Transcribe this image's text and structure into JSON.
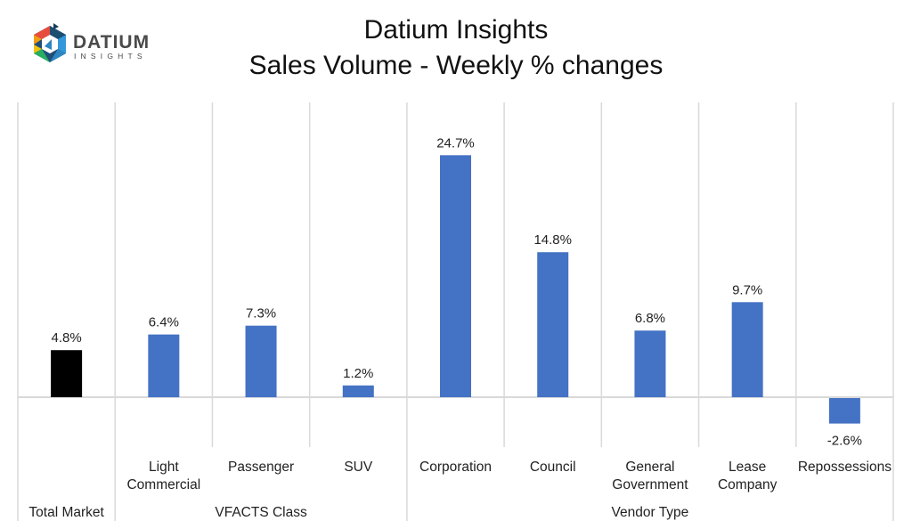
{
  "logo": {
    "text": "DATIUM",
    "subtext": "INSIGHTS"
  },
  "chart_data": {
    "type": "bar",
    "title": [
      "Datium Insights",
      "Sales Volume - Weekly % changes"
    ],
    "categories": [
      "Total Market",
      "Light Commercial",
      "Passenger",
      "SUV",
      "Corporation",
      "Council",
      "General Government",
      "Lease Company",
      "Repossessions"
    ],
    "category_label_lines": [
      [
        ""
      ],
      [
        "Light",
        "Commercial"
      ],
      [
        "Passenger"
      ],
      [
        "SUV"
      ],
      [
        "Corporation"
      ],
      [
        "Council"
      ],
      [
        "General",
        "Government"
      ],
      [
        "Lease",
        "Company"
      ],
      [
        "Repossessions"
      ]
    ],
    "groups": [
      {
        "label": "Total Market",
        "start": 0,
        "count": 1
      },
      {
        "label": "VFACTS Class",
        "start": 1,
        "count": 3
      },
      {
        "label": "Vendor Type",
        "start": 4,
        "count": 5
      }
    ],
    "values": [
      4.8,
      6.4,
      7.3,
      1.2,
      24.7,
      14.8,
      6.8,
      9.7,
      -2.6
    ],
    "data_labels": [
      "4.8%",
      "6.4%",
      "7.3%",
      "1.2%",
      "24.7%",
      "14.8%",
      "6.8%",
      "9.7%",
      "-2.6%"
    ],
    "ylim": [
      -5,
      25
    ],
    "unit": "%",
    "colors": {
      "total": "#000000",
      "bars": "#4472C4",
      "grid": "#d9d9d9"
    },
    "legend": "none"
  }
}
